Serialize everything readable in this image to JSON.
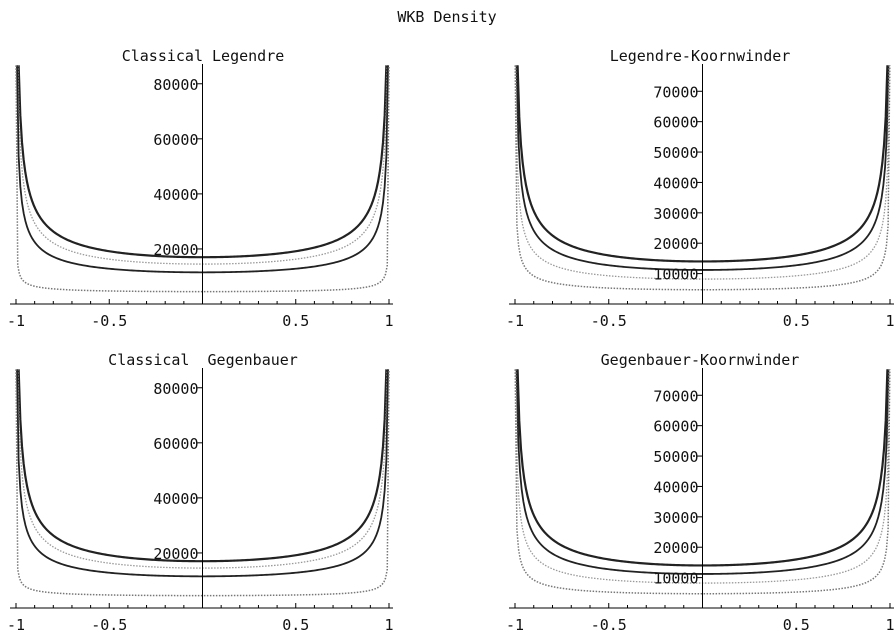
{
  "figure_title": "WKB Density",
  "chart_data": [
    {
      "type": "line",
      "title": "Classical Legendre",
      "xlim": [
        -1,
        1
      ],
      "ylim": [
        0,
        85000
      ],
      "xticks": [
        -1,
        -0.5,
        0.5,
        1
      ],
      "xtick_labels": [
        "-1",
        "-0.5",
        "0.5",
        "1"
      ],
      "yticks": [
        20000,
        40000,
        60000,
        80000
      ],
      "ytick_labels": [
        "20000",
        "40000",
        "60000",
        "80000"
      ],
      "grid": false,
      "series": [
        {
          "color": "#222222",
          "style": "solid",
          "width": 2.2,
          "values": [
            14000,
            3000
          ]
        },
        {
          "color": "#999999",
          "style": "dotted",
          "width": 1.3,
          "values": [
            11500,
            3000
          ]
        },
        {
          "color": "#222222",
          "style": "solid",
          "width": 1.8,
          "values": [
            8500,
            3000
          ]
        },
        {
          "color": "#777777",
          "style": "dotted",
          "width": 1.5,
          "values": [
            1500,
            3000
          ]
        }
      ]
    },
    {
      "type": "line",
      "title": "Legendre-Koornwinder",
      "xlim": [
        -1,
        1
      ],
      "ylim": [
        0,
        77000
      ],
      "xticks": [
        -1,
        -0.5,
        0.5,
        1
      ],
      "xtick_labels": [
        "-1",
        "-0.5",
        "0.5",
        "1"
      ],
      "yticks": [
        10000,
        20000,
        30000,
        40000,
        50000,
        60000,
        70000
      ],
      "ytick_labels": [
        "10000",
        "20000",
        "30000",
        "40000",
        "50000",
        "60000",
        "70000"
      ],
      "grid": false,
      "series": [
        {
          "color": "#222222",
          "style": "solid",
          "width": 2.2,
          "values": [
            12800,
            1200
          ]
        },
        {
          "color": "#222222",
          "style": "solid",
          "width": 1.8,
          "values": [
            10000,
            1200
          ]
        },
        {
          "color": "#999999",
          "style": "dotted",
          "width": 1.3,
          "values": [
            7000,
            1200
          ]
        },
        {
          "color": "#777777",
          "style": "dotted",
          "width": 1.5,
          "values": [
            3500,
            1200
          ]
        }
      ]
    },
    {
      "type": "line",
      "title": "Classical  Gegenbauer",
      "xlim": [
        -1,
        1
      ],
      "ylim": [
        0,
        85000
      ],
      "xticks": [
        -1,
        -0.5,
        0.5,
        1
      ],
      "xtick_labels": [
        "-1",
        "-0.5",
        "0.5",
        "1"
      ],
      "yticks": [
        20000,
        40000,
        60000,
        80000
      ],
      "ytick_labels": [
        "20000",
        "40000",
        "60000",
        "80000"
      ],
      "grid": false,
      "series": [
        {
          "color": "#222222",
          "style": "solid",
          "width": 2.2,
          "values": [
            14000,
            3000
          ]
        },
        {
          "color": "#999999",
          "style": "dotted",
          "width": 1.3,
          "values": [
            11500,
            3000
          ]
        },
        {
          "color": "#222222",
          "style": "solid",
          "width": 1.8,
          "values": [
            8500,
            3000
          ]
        },
        {
          "color": "#777777",
          "style": "dotted",
          "width": 1.5,
          "values": [
            1500,
            3000
          ]
        }
      ]
    },
    {
      "type": "line",
      "title": "Gegenbauer-Koornwinder",
      "xlim": [
        -1,
        1
      ],
      "ylim": [
        0,
        77000
      ],
      "xticks": [
        -1,
        -0.5,
        0.5,
        1
      ],
      "xtick_labels": [
        "-1",
        "-0.5",
        "0.5",
        "1"
      ],
      "yticks": [
        10000,
        20000,
        30000,
        40000,
        50000,
        60000,
        70000
      ],
      "ytick_labels": [
        "10000",
        "20000",
        "30000",
        "40000",
        "50000",
        "60000",
        "70000"
      ],
      "grid": false,
      "series": [
        {
          "color": "#222222",
          "style": "solid",
          "width": 2.2,
          "values": [
            12800,
            1200
          ]
        },
        {
          "color": "#222222",
          "style": "solid",
          "width": 1.8,
          "values": [
            10000,
            1200
          ]
        },
        {
          "color": "#999999",
          "style": "dotted",
          "width": 1.3,
          "values": [
            7000,
            1200
          ]
        },
        {
          "color": "#777777",
          "style": "dotted",
          "width": 1.5,
          "values": [
            3500,
            1200
          ]
        }
      ]
    }
  ]
}
